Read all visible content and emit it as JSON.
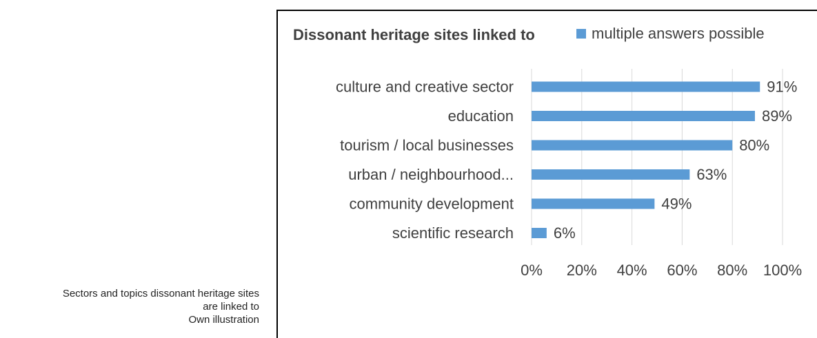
{
  "caption": {
    "line1": "Sectors and topics dissonant heritage sites",
    "line2": "are linked to",
    "line3": "Own illustration"
  },
  "chart_data": {
    "type": "bar",
    "orientation": "horizontal",
    "title": "Dissonant heritage sites linked to",
    "categories": [
      "culture and creative sector",
      "education",
      "tourism / local businesses",
      "urban / neighbourhood...",
      "community development",
      "scientific research"
    ],
    "series": [
      {
        "name": "multiple answers possible",
        "values": [
          91,
          89,
          80,
          63,
          49,
          6
        ],
        "color": "#5b9bd5"
      }
    ],
    "value_labels": [
      "91%",
      "89%",
      "80%",
      "63%",
      "49%",
      "6%"
    ],
    "xlim": [
      0,
      100
    ],
    "x_ticks": [
      "0%",
      "20%",
      "40%",
      "60%",
      "80%",
      "100%"
    ],
    "legend_position": "top-right",
    "grid": "vertical gridlines"
  }
}
